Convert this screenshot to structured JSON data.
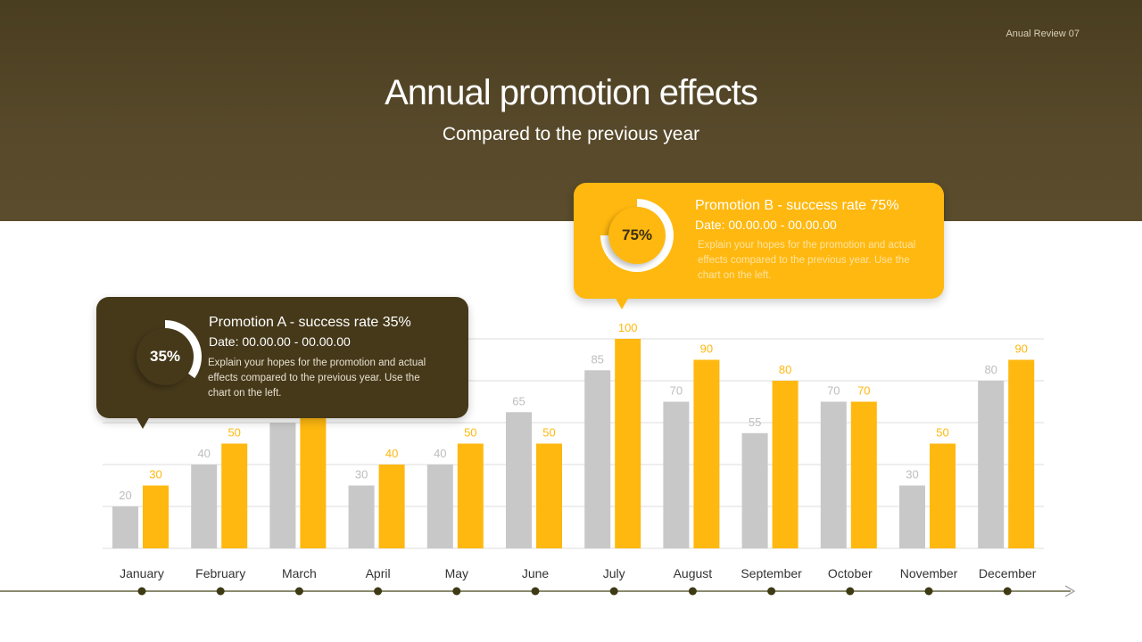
{
  "header": {
    "tag": "Anual Review 07",
    "title": "Annual promotion effects",
    "subtitle": "Compared to the previous year"
  },
  "callouts": [
    {
      "heading": "Promotion A - success rate 35%",
      "date": "Date: 00.00.00 - 00.00.00",
      "text": "Explain your hopes for the promotion and actual effects compared to the previous year. Use the chart on the left.",
      "percent_label": "35%",
      "rate": 35,
      "color": "#46391a"
    },
    {
      "heading": "Promotion B - success rate 75%",
      "date": "Date: 00.00.00 - 00.00.00",
      "text": "Explain your hopes for the promotion and actual effects compared to the previous year. Use the chart on the left.",
      "percent_label": "75%",
      "rate": 75,
      "color": "#ffb80f"
    }
  ],
  "chart_data": {
    "type": "bar",
    "categories": [
      "January",
      "February",
      "March",
      "April",
      "May",
      "June",
      "July",
      "August",
      "September",
      "October",
      "November",
      "December"
    ],
    "series": [
      {
        "color": "#c8c8c8",
        "values": [
          20,
          40,
          60,
          30,
          40,
          65,
          85,
          70,
          55,
          70,
          30,
          80
        ]
      },
      {
        "color": "#ffb80f",
        "values": [
          30,
          50,
          70,
          40,
          50,
          50,
          100,
          90,
          80,
          70,
          50,
          90
        ]
      }
    ],
    "ylim": [
      0,
      100
    ],
    "grid": true,
    "hidden_labels": [
      "March"
    ]
  }
}
